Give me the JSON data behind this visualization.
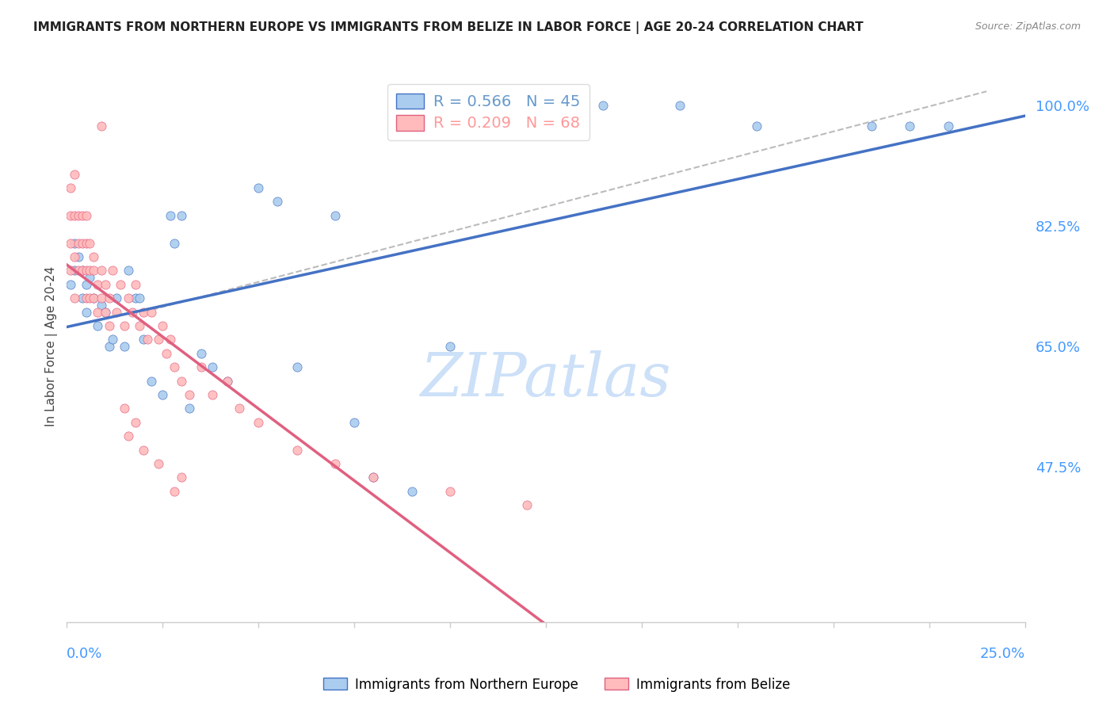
{
  "title": "IMMIGRANTS FROM NORTHERN EUROPE VS IMMIGRANTS FROM BELIZE IN LABOR FORCE | AGE 20-24 CORRELATION CHART",
  "source": "Source: ZipAtlas.com",
  "ylabel_label": "In Labor Force | Age 20-24",
  "xmin": 0.0,
  "xmax": 0.25,
  "ymin": 0.25,
  "ymax": 1.05,
  "yticks": [
    0.475,
    0.65,
    0.825,
    1.0
  ],
  "ytick_labels": [
    "47.5%",
    "65.0%",
    "82.5%",
    "100.0%"
  ],
  "legend_entries": [
    {
      "label": "R = 0.566   N = 45",
      "color": "#6699cc"
    },
    {
      "label": "R = 0.209   N = 68",
      "color": "#ff9999"
    }
  ],
  "legend_labels": [
    "Immigrants from Northern Europe",
    "Immigrants from Belize"
  ],
  "blue_scatter_x": [
    0.001,
    0.002,
    0.002,
    0.003,
    0.004,
    0.004,
    0.005,
    0.005,
    0.006,
    0.007,
    0.008,
    0.009,
    0.01,
    0.011,
    0.012,
    0.013,
    0.015,
    0.016,
    0.018,
    0.019,
    0.02,
    0.022,
    0.025,
    0.027,
    0.028,
    0.03,
    0.032,
    0.035,
    0.038,
    0.042,
    0.05,
    0.055,
    0.06,
    0.07,
    0.075,
    0.08,
    0.09,
    0.1,
    0.12,
    0.14,
    0.16,
    0.18,
    0.21,
    0.22,
    0.23
  ],
  "blue_scatter_y": [
    0.74,
    0.76,
    0.8,
    0.78,
    0.76,
    0.72,
    0.74,
    0.7,
    0.75,
    0.72,
    0.68,
    0.71,
    0.7,
    0.65,
    0.66,
    0.72,
    0.65,
    0.76,
    0.72,
    0.72,
    0.66,
    0.6,
    0.58,
    0.84,
    0.8,
    0.84,
    0.56,
    0.64,
    0.62,
    0.6,
    0.88,
    0.86,
    0.62,
    0.84,
    0.54,
    0.46,
    0.44,
    0.65,
    1.0,
    1.0,
    1.0,
    0.97,
    0.97,
    0.97,
    0.97
  ],
  "pink_scatter_x": [
    0.001,
    0.001,
    0.001,
    0.001,
    0.002,
    0.002,
    0.002,
    0.002,
    0.003,
    0.003,
    0.003,
    0.004,
    0.004,
    0.004,
    0.005,
    0.005,
    0.005,
    0.005,
    0.006,
    0.006,
    0.006,
    0.007,
    0.007,
    0.007,
    0.008,
    0.008,
    0.009,
    0.009,
    0.01,
    0.01,
    0.011,
    0.011,
    0.012,
    0.013,
    0.014,
    0.015,
    0.016,
    0.017,
    0.018,
    0.019,
    0.02,
    0.021,
    0.022,
    0.024,
    0.025,
    0.026,
    0.027,
    0.028,
    0.03,
    0.032,
    0.035,
    0.038,
    0.042,
    0.045,
    0.05,
    0.06,
    0.07,
    0.08,
    0.1,
    0.12,
    0.015,
    0.016,
    0.018,
    0.02,
    0.024,
    0.028,
    0.03,
    0.009
  ],
  "pink_scatter_y": [
    0.76,
    0.8,
    0.84,
    0.88,
    0.72,
    0.78,
    0.84,
    0.9,
    0.76,
    0.8,
    0.84,
    0.76,
    0.8,
    0.84,
    0.72,
    0.76,
    0.8,
    0.84,
    0.72,
    0.76,
    0.8,
    0.72,
    0.76,
    0.78,
    0.7,
    0.74,
    0.72,
    0.76,
    0.7,
    0.74,
    0.72,
    0.68,
    0.76,
    0.7,
    0.74,
    0.68,
    0.72,
    0.7,
    0.74,
    0.68,
    0.7,
    0.66,
    0.7,
    0.66,
    0.68,
    0.64,
    0.66,
    0.62,
    0.6,
    0.58,
    0.62,
    0.58,
    0.6,
    0.56,
    0.54,
    0.5,
    0.48,
    0.46,
    0.44,
    0.42,
    0.56,
    0.52,
    0.54,
    0.5,
    0.48,
    0.44,
    0.46,
    0.97
  ],
  "blue_line_color": "#4472c4",
  "pink_line_color": "#e06080",
  "dashed_line_color": "#b0b0b0",
  "scatter_blue_color": "#aaccee",
  "scatter_pink_color": "#ffbbbb",
  "watermark_text": "ZIPatlas",
  "watermark_color": "#cce0f8",
  "axis_color": "#4499ff",
  "grid_color": "#e0e0e0"
}
